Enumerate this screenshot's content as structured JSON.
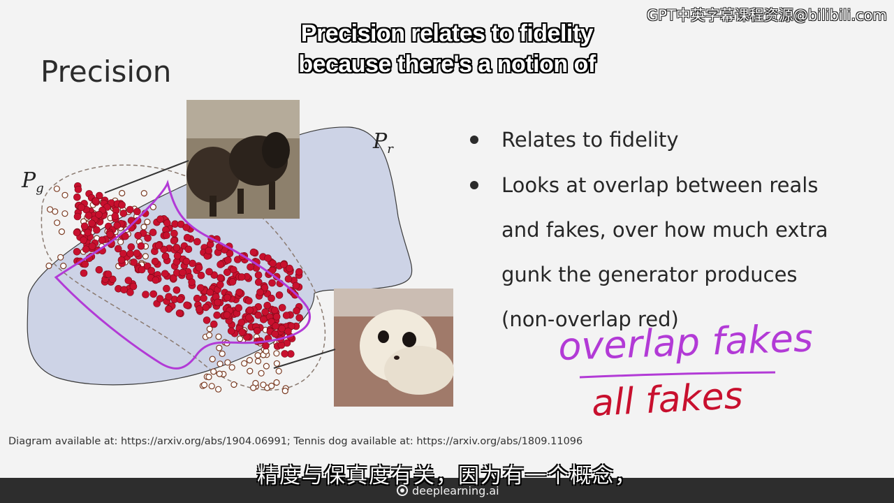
{
  "watermark": "GPT中英字幕课程资源@bilibili.com",
  "subtitle_en": [
    "Precision relates to fidelity",
    "because there's a notion of"
  ],
  "slide": {
    "title": "Precision",
    "labels": {
      "pr_main": "P",
      "pr_sub": "r",
      "pg_main": "P",
      "pg_sub": "g"
    },
    "bullets": [
      "Relates to fidelity",
      "Looks at overlap between reals and fakes, over how much extra gunk the generator produces (non-overlap red)"
    ],
    "handwriting": {
      "numerator": "overlap fakes",
      "denominator": "all fakes"
    },
    "credit": "Diagram available at: https://arxiv.org/abs/1904.06991; Tennis dog available at:  https://arxiv.org/abs/1809.11096"
  },
  "subtitle_cn": "精度与保真度有关，因为有一个概念，",
  "brand": "deeplearning.ai",
  "colors": {
    "real_region": "#cdd3e6",
    "fake_dot": "#c8102e",
    "pen_purple": "#b23ad6",
    "pen_red": "#c8102e"
  }
}
